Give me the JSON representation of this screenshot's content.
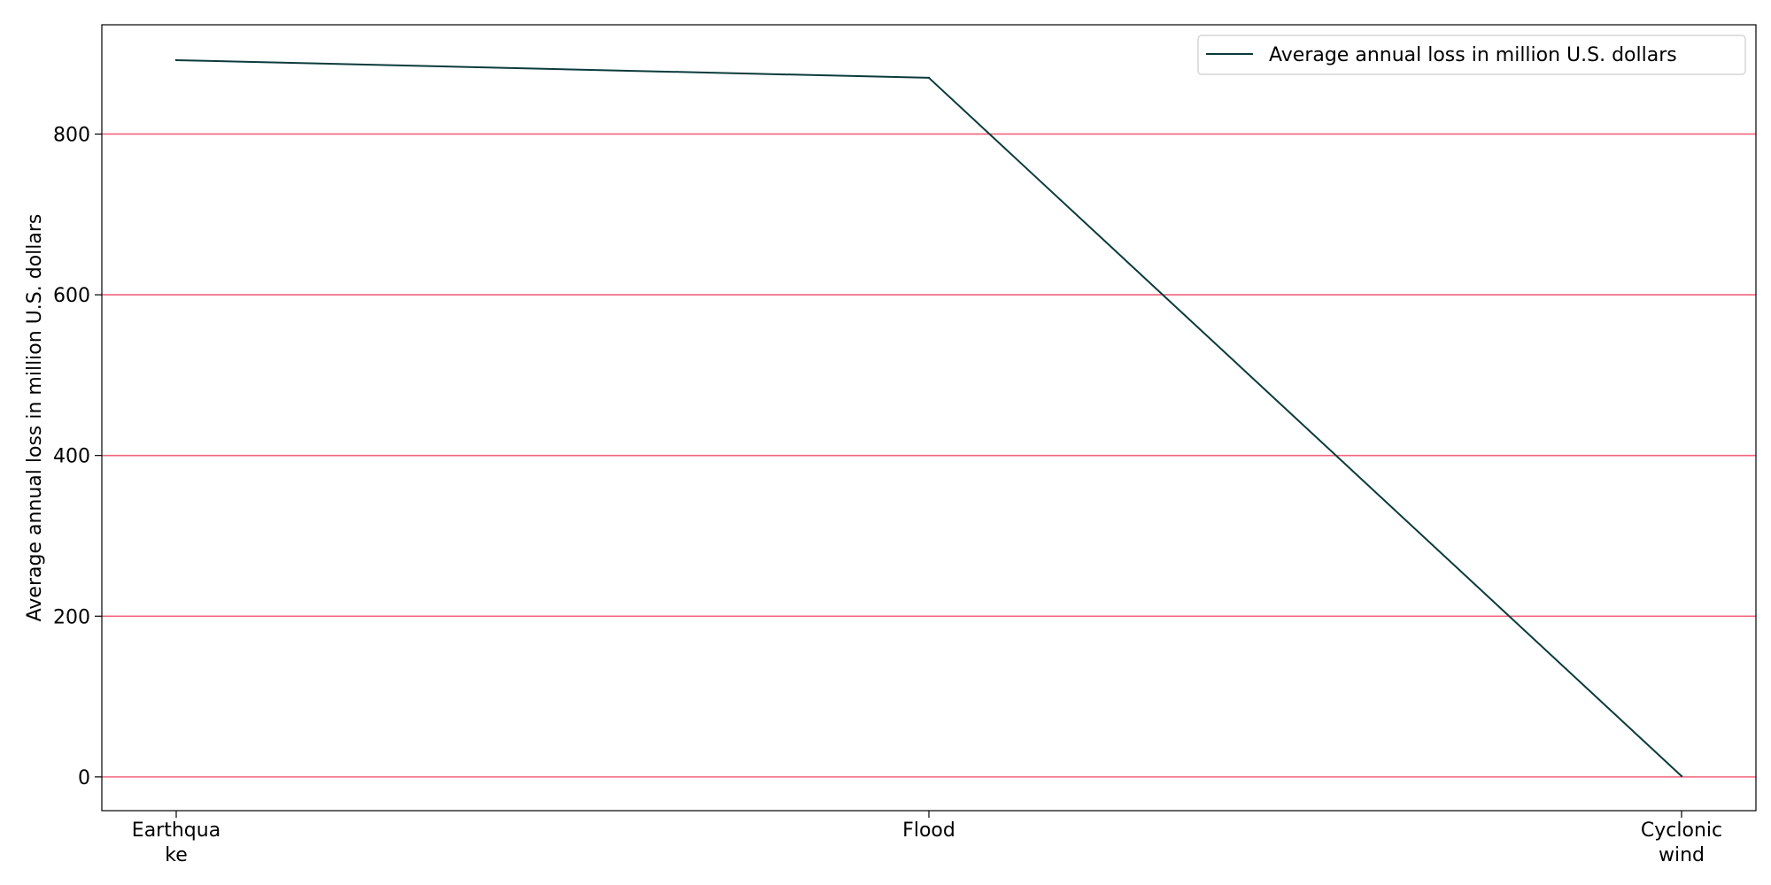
{
  "chart_data": {
    "type": "line",
    "categories": [
      "Earthquake",
      "Flood",
      "Cyclonic wind"
    ],
    "category_tick_lines": [
      [
        "Earthqua",
        "ke"
      ],
      [
        "Flood"
      ],
      [
        "Cyclonic",
        "wind"
      ]
    ],
    "series": [
      {
        "name": "Average annual loss in million U.S. dollars",
        "values": [
          892,
          870,
          1
        ],
        "color": "#0b3b3c"
      }
    ],
    "title": "",
    "xlabel": "",
    "ylabel": "Average annual loss in million U.S. dollars",
    "ylim": [
      -42,
      936
    ],
    "yticks": [
      0,
      200,
      400,
      600,
      800
    ],
    "grid": "horizontal",
    "grid_color": "#f2647e",
    "legend_position": "top-right"
  }
}
